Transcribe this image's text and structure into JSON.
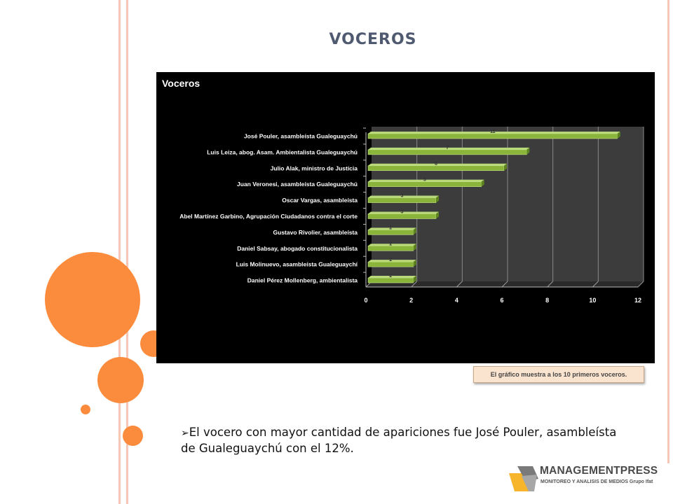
{
  "slide": {
    "title": "VOCEROS",
    "note": "El gráfico muestra a los 10 primeros voceros.",
    "bullet_marker": "➢",
    "bullet_text": "El vocero con mayor cantidad de apariciones fue José Pouler, asambleísta de Gualeguaychú con el 12%."
  },
  "logo": {
    "name": "MANAGEMENTPRESS",
    "subtitle": "MONITOREO Y ANALISIS DE MEDIOS Grupo Ifat"
  },
  "colors": {
    "accent": "#fb8c3e",
    "rule": "#f6c7b6",
    "bar": "#8ab43a",
    "title": "#4f5a70",
    "logo_yellow": "#f7b52c"
  },
  "chart_data": {
    "type": "bar",
    "orientation": "horizontal",
    "title": "Voceros",
    "categories": [
      "José Pouler, asambleísta Gualeguaychú",
      "Luis Leiza, abog. Asam. Ambientalista Gualeguaychú",
      "Julio Alak, ministro de Justicia",
      "Juan Veronesi, asambleísta Gualeguaychú",
      "Oscar Vargas, asambleísta",
      "Abel Martínez Garbino, Agrupación Ciudadanos contra el corte",
      "Gustavo Rivolier, asambleísta",
      "Daniel Sabsay, abogado constitucionalista",
      "Luis Molinuevo, asambleísta Gualeguaychí",
      "Daniel Pérez Mollenberg, ambientalista"
    ],
    "values": [
      11,
      7,
      6,
      5,
      3,
      3,
      2,
      2,
      2,
      2
    ],
    "data_labels": [
      "11",
      "7",
      "6",
      "5",
      "3",
      "3",
      "2",
      "2",
      "2",
      "2"
    ],
    "xlim": [
      0,
      12
    ],
    "xticks": [
      "0",
      "2",
      "4",
      "6",
      "8",
      "10",
      "12"
    ],
    "grid": true,
    "legend": "none"
  }
}
